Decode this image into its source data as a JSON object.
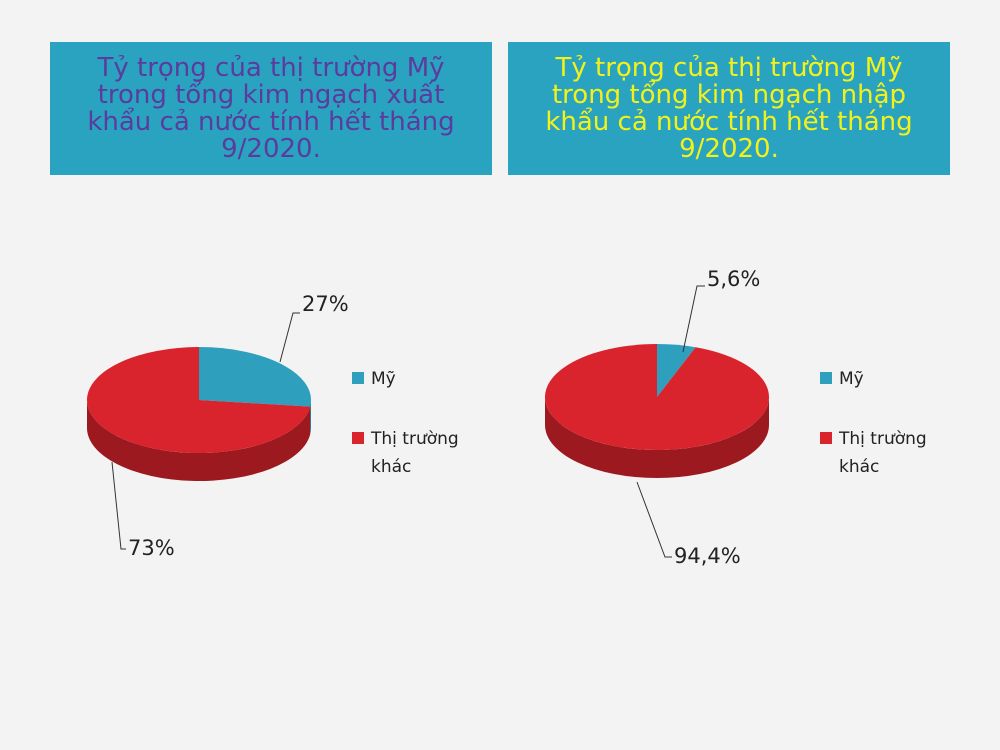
{
  "chart_data": [
    {
      "type": "pie",
      "title": "Tỷ trọng của thị trường Mỹ trong tổng kim ngạch xuất khẩu cả nước tính hết tháng 9/2020.",
      "title_color": "#5b3c9e",
      "categories": [
        "Mỹ",
        "Thị trường khác"
      ],
      "colors": [
        "#2e9fbd",
        "#d9232d"
      ],
      "values": [
        27,
        73
      ],
      "value_labels": [
        "27%",
        "73%"
      ]
    },
    {
      "type": "pie",
      "title": "Tỷ trọng của thị trường Mỹ trong tổng kim ngạch nhập khẩu cả nước tính hết tháng 9/2020.",
      "title_color": "#f2f21a",
      "categories": [
        "Mỹ",
        "Thị trường khác"
      ],
      "colors": [
        "#2e9fbd",
        "#d9232d"
      ],
      "values": [
        5.6,
        94.4
      ],
      "value_labels": [
        "5,6%",
        "94,4%"
      ]
    }
  ]
}
